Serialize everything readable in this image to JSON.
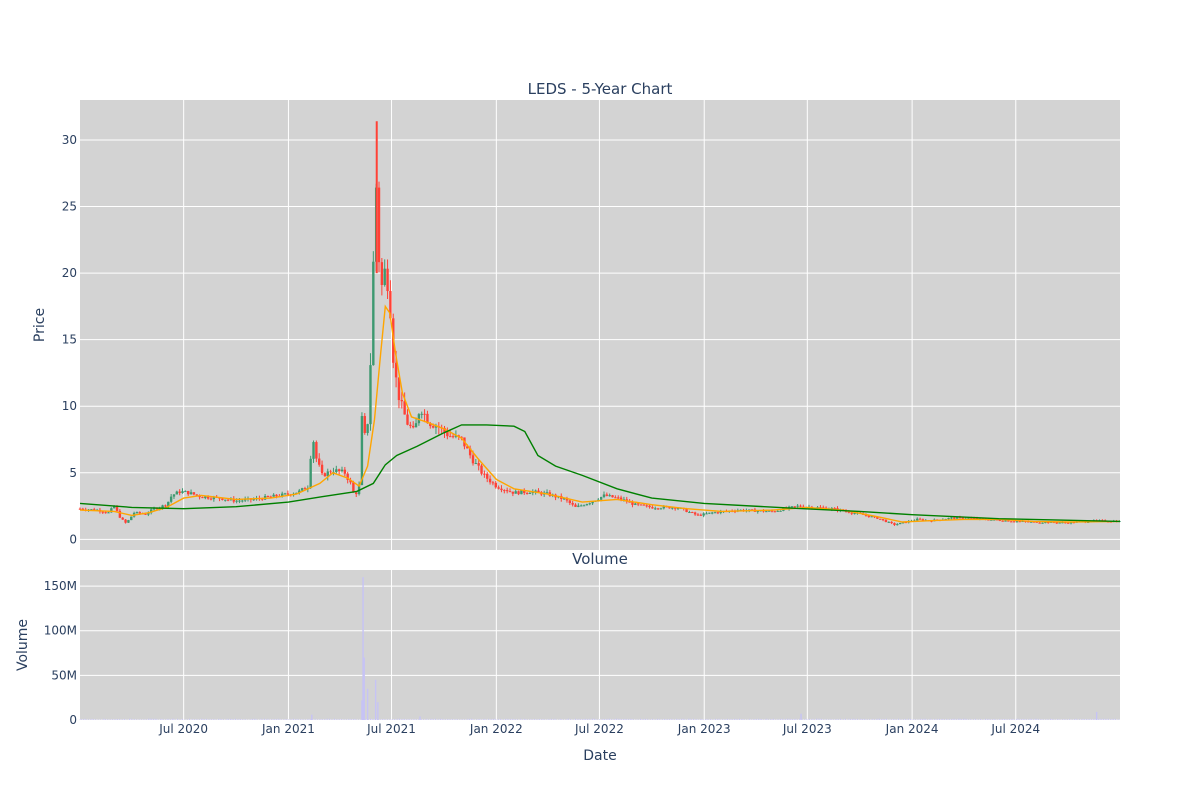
{
  "chart_data": [
    {
      "type": "candlestick",
      "title": "LEDS - 5-Year Chart",
      "xlabel": "",
      "ylabel": "Price",
      "ylim": [
        -0.8,
        33
      ],
      "yticks": [
        0,
        5,
        10,
        15,
        20,
        25,
        30
      ],
      "xlim": [
        "2020-01-01",
        "2024-12-31"
      ],
      "grid": true,
      "background": "#d3d3d3",
      "colors": {
        "up": "#3d9970",
        "down": "#ff4136",
        "ma_short": "#ffa500",
        "ma_long": "#008000"
      },
      "price_path": [
        [
          "2020-01-01",
          2.3
        ],
        [
          "2020-02-01",
          2.2
        ],
        [
          "2020-02-20",
          2.0
        ],
        [
          "2020-03-01",
          2.5
        ],
        [
          "2020-03-12",
          1.6
        ],
        [
          "2020-03-22",
          1.2
        ],
        [
          "2020-04-05",
          2.0
        ],
        [
          "2020-04-25",
          1.9
        ],
        [
          "2020-05-10",
          2.3
        ],
        [
          "2020-06-01",
          2.6
        ],
        [
          "2020-06-10",
          3.3
        ],
        [
          "2020-06-25",
          3.6
        ],
        [
          "2020-07-10",
          3.5
        ],
        [
          "2020-08-01",
          3.2
        ],
        [
          "2020-09-01",
          3.1
        ],
        [
          "2020-10-01",
          2.9
        ],
        [
          "2020-11-01",
          3.0
        ],
        [
          "2020-12-01",
          3.2
        ],
        [
          "2021-01-01",
          3.4
        ],
        [
          "2021-01-20",
          3.6
        ],
        [
          "2021-02-05",
          4.0
        ],
        [
          "2021-02-12",
          8.0
        ],
        [
          "2021-02-18",
          6.2
        ],
        [
          "2021-03-01",
          4.8
        ],
        [
          "2021-03-20",
          5.2
        ],
        [
          "2021-04-10",
          5.0
        ],
        [
          "2021-04-20",
          4.2
        ],
        [
          "2021-04-27",
          3.2
        ],
        [
          "2021-05-05",
          4.0
        ],
        [
          "2021-05-10",
          9.0
        ],
        [
          "2021-05-16",
          7.5
        ],
        [
          "2021-05-22",
          9.5
        ],
        [
          "2021-05-28",
          17.0
        ],
        [
          "2021-06-03",
          28.0
        ],
        [
          "2021-06-07",
          22.0
        ],
        [
          "2021-06-14",
          19.0
        ],
        [
          "2021-06-21",
          20.5
        ],
        [
          "2021-06-28",
          18.0
        ],
        [
          "2021-07-05",
          13.0
        ],
        [
          "2021-07-15",
          10.5
        ],
        [
          "2021-07-28",
          8.8
        ],
        [
          "2021-08-10",
          8.0
        ],
        [
          "2021-08-20",
          10.0
        ],
        [
          "2021-09-05",
          8.8
        ],
        [
          "2021-09-20",
          8.5
        ],
        [
          "2021-10-10",
          7.8
        ],
        [
          "2021-11-01",
          7.5
        ],
        [
          "2021-11-20",
          6.0
        ],
        [
          "2021-12-10",
          4.8
        ],
        [
          "2022-01-01",
          4.0
        ],
        [
          "2022-02-01",
          3.5
        ],
        [
          "2022-03-01",
          3.6
        ],
        [
          "2022-04-01",
          3.4
        ],
        [
          "2022-05-01",
          3.0
        ],
        [
          "2022-05-20",
          2.4
        ],
        [
          "2022-06-15",
          2.8
        ],
        [
          "2022-07-10",
          3.3
        ],
        [
          "2022-08-10",
          3.0
        ],
        [
          "2022-09-01",
          2.6
        ],
        [
          "2022-10-01",
          2.4
        ],
        [
          "2022-11-15",
          2.4
        ],
        [
          "2022-12-20",
          1.8
        ],
        [
          "2023-01-15",
          2.0
        ],
        [
          "2023-03-01",
          2.2
        ],
        [
          "2023-05-01",
          2.1
        ],
        [
          "2023-06-15",
          2.5
        ],
        [
          "2023-07-15",
          2.4
        ],
        [
          "2023-08-15",
          2.3
        ],
        [
          "2023-10-01",
          1.9
        ],
        [
          "2023-11-01",
          1.6
        ],
        [
          "2023-12-01",
          1.1
        ],
        [
          "2024-01-10",
          1.5
        ],
        [
          "2024-02-01",
          1.4
        ],
        [
          "2024-03-10",
          1.6
        ],
        [
          "2024-04-10",
          1.6
        ],
        [
          "2024-05-10",
          1.5
        ],
        [
          "2024-06-15",
          1.4
        ],
        [
          "2024-08-01",
          1.3
        ],
        [
          "2024-10-01",
          1.25
        ],
        [
          "2024-11-20",
          1.4
        ],
        [
          "2024-12-31",
          1.35
        ]
      ],
      "ma_short": [
        [
          "2020-01-01",
          2.2
        ],
        [
          "2020-03-01",
          2.1
        ],
        [
          "2020-04-01",
          1.8
        ],
        [
          "2020-05-01",
          2.0
        ],
        [
          "2020-06-01",
          2.4
        ],
        [
          "2020-07-01",
          3.1
        ],
        [
          "2020-08-01",
          3.3
        ],
        [
          "2020-10-01",
          3.0
        ],
        [
          "2020-12-01",
          3.1
        ],
        [
          "2021-01-15",
          3.4
        ],
        [
          "2021-02-25",
          4.2
        ],
        [
          "2021-03-20",
          5.0
        ],
        [
          "2021-04-15",
          4.6
        ],
        [
          "2021-05-05",
          4.0
        ],
        [
          "2021-05-20",
          5.5
        ],
        [
          "2021-06-01",
          9.0
        ],
        [
          "2021-06-12",
          14.0
        ],
        [
          "2021-06-20",
          17.5
        ],
        [
          "2021-06-28",
          17.0
        ],
        [
          "2021-07-08",
          14.0
        ],
        [
          "2021-07-20",
          11.0
        ],
        [
          "2021-08-05",
          9.2
        ],
        [
          "2021-09-01",
          8.8
        ],
        [
          "2021-10-01",
          8.3
        ],
        [
          "2021-11-01",
          7.6
        ],
        [
          "2021-12-01",
          6.0
        ],
        [
          "2022-01-01",
          4.5
        ],
        [
          "2022-02-01",
          3.8
        ],
        [
          "2022-04-01",
          3.4
        ],
        [
          "2022-06-01",
          2.8
        ],
        [
          "2022-08-01",
          3.0
        ],
        [
          "2022-10-01",
          2.6
        ],
        [
          "2022-12-01",
          2.3
        ],
        [
          "2023-02-01",
          2.1
        ],
        [
          "2023-05-01",
          2.2
        ],
        [
          "2023-07-01",
          2.4
        ],
        [
          "2023-09-01",
          2.2
        ],
        [
          "2023-11-01",
          1.7
        ],
        [
          "2023-12-15",
          1.3
        ],
        [
          "2024-02-01",
          1.4
        ],
        [
          "2024-04-01",
          1.5
        ],
        [
          "2024-06-01",
          1.5
        ],
        [
          "2024-08-01",
          1.35
        ],
        [
          "2024-10-01",
          1.3
        ],
        [
          "2024-12-31",
          1.35
        ]
      ],
      "ma_long": [
        [
          "2020-01-01",
          2.7
        ],
        [
          "2020-04-01",
          2.4
        ],
        [
          "2020-07-01",
          2.3
        ],
        [
          "2020-10-01",
          2.45
        ],
        [
          "2021-01-01",
          2.8
        ],
        [
          "2021-03-01",
          3.2
        ],
        [
          "2021-05-01",
          3.6
        ],
        [
          "2021-05-30",
          4.2
        ],
        [
          "2021-06-20",
          5.6
        ],
        [
          "2021-07-10",
          6.3
        ],
        [
          "2021-08-15",
          7.0
        ],
        [
          "2021-10-01",
          8.0
        ],
        [
          "2021-11-01",
          8.6
        ],
        [
          "2021-12-15",
          8.6
        ],
        [
          "2022-02-01",
          8.5
        ],
        [
          "2022-02-20",
          8.1
        ],
        [
          "2022-03-15",
          6.3
        ],
        [
          "2022-04-15",
          5.5
        ],
        [
          "2022-06-01",
          4.8
        ],
        [
          "2022-08-01",
          3.8
        ],
        [
          "2022-10-01",
          3.1
        ],
        [
          "2023-01-01",
          2.7
        ],
        [
          "2023-06-01",
          2.35
        ],
        [
          "2023-10-01",
          2.1
        ],
        [
          "2024-01-01",
          1.85
        ],
        [
          "2024-06-01",
          1.55
        ],
        [
          "2024-12-31",
          1.35
        ]
      ]
    },
    {
      "type": "bar",
      "title": "Volume",
      "xlabel": "Date",
      "ylabel": "Volume",
      "ylim": [
        0,
        168
      ],
      "unit": "M",
      "yticks": [
        0,
        50,
        100,
        150
      ],
      "ytick_labels": [
        "0",
        "50M",
        "100M",
        "150M"
      ],
      "xticks": [
        "2020-07-01",
        "2021-01-01",
        "2021-07-01",
        "2022-01-01",
        "2022-07-01",
        "2023-01-01",
        "2023-07-01",
        "2024-01-01",
        "2024-07-01"
      ],
      "xtick_labels": [
        "Jul 2020",
        "Jan 2021",
        "Jul 2021",
        "Jan 2022",
        "Jul 2022",
        "Jan 2023",
        "Jul 2023",
        "Jan 2024",
        "Jul 2024"
      ],
      "color": "#c6c3f5",
      "spikes": [
        [
          "2021-02-11",
          6
        ],
        [
          "2021-05-10",
          22
        ],
        [
          "2021-05-12",
          160
        ],
        [
          "2021-05-14",
          70
        ],
        [
          "2021-05-20",
          35
        ],
        [
          "2021-06-03",
          45
        ],
        [
          "2021-06-07",
          20
        ],
        [
          "2021-08-20",
          4
        ],
        [
          "2023-06-20",
          7
        ],
        [
          "2024-11-20",
          9
        ]
      ]
    }
  ]
}
